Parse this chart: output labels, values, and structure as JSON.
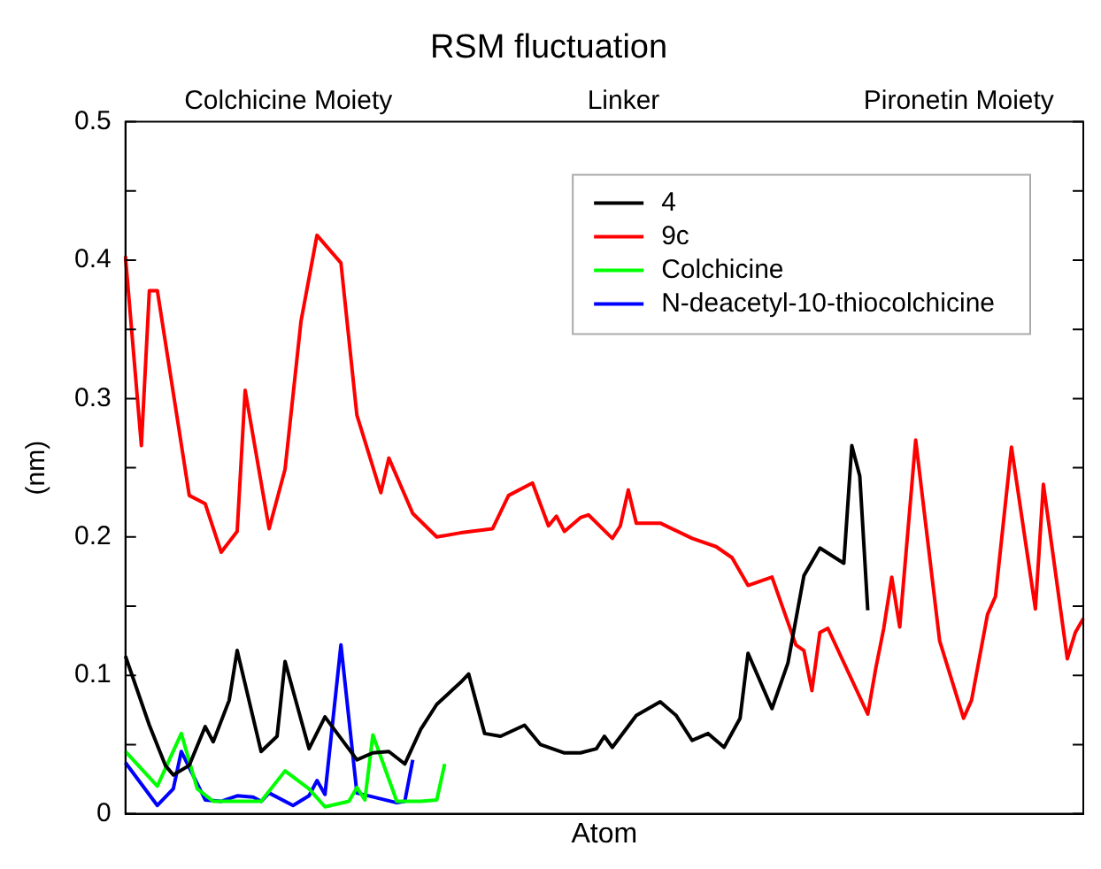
{
  "chart_data": {
    "type": "line",
    "title": "RSM fluctuation",
    "xlabel": "Atom",
    "ylabel": "(nm)",
    "annotations": [
      "Colchicine Moiety",
      "Linker",
      "Pironetin Moiety"
    ],
    "categories": [
      null,
      null,
      null,
      null,
      null,
      null,
      null,
      null,
      null,
      null,
      null,
      null,
      null,
      null,
      null,
      null,
      null,
      null,
      null,
      null,
      null,
      null,
      null,
      null,
      null,
      null,
      null,
      null,
      null,
      null,
      null,
      null,
      null,
      null,
      null,
      null,
      null,
      null,
      null,
      null,
      null,
      null,
      null,
      null,
      null,
      null,
      null,
      null,
      null,
      null,
      null,
      null,
      null,
      null,
      null,
      null,
      null,
      null,
      null,
      null,
      null,
      null,
      null,
      null,
      null,
      null,
      null,
      null,
      null,
      null,
      null,
      null,
      null,
      null,
      null,
      null,
      null,
      null,
      null,
      null,
      null,
      null,
      null,
      null,
      null,
      null,
      null,
      null,
      null,
      null,
      null,
      null,
      null,
      null,
      null,
      null,
      null,
      null,
      null,
      null,
      null,
      null,
      null,
      null,
      null,
      null,
      null,
      null,
      null,
      null,
      null,
      null,
      null,
      null,
      null,
      null,
      null,
      null,
      null,
      null,
      null
    ],
    "ylim": [
      0,
      0.5
    ],
    "yticks": [
      0,
      {
        "value": 0.05,
        "label": null
      },
      0.1,
      {
        "value": 0.15,
        "label": null
      },
      0.2,
      {
        "value": 0.25,
        "label": null
      },
      0.3,
      {
        "value": 0.35,
        "label": null
      },
      0.4,
      {
        "value": 0.45,
        "label": null
      },
      0.5
    ],
    "tick_labels": "y",
    "grid": false,
    "legend": "top right",
    "marker": "none",
    "line_style": "solid",
    "series": [
      {
        "name": "4",
        "color": "#000000",
        "values": [
          0.114,
          null,
          null,
          0.064,
          null,
          0.035,
          0.028,
          null,
          0.035,
          null,
          0.063,
          0.052,
          null,
          0.082,
          0.118,
          null,
          null,
          0.045,
          null,
          0.056,
          0.11,
          null,
          null,
          0.047,
          null,
          0.07,
          null,
          null,
          null,
          0.039,
          null,
          0.044,
          null,
          0.045,
          null,
          0.036,
          null,
          0.061,
          null,
          0.079,
          null,
          null,
          0.095,
          0.101,
          null,
          0.058,
          null,
          0.056,
          null,
          null,
          0.064,
          null,
          0.05,
          null,
          null,
          0.044,
          null,
          0.044,
          null,
          0.047,
          0.056,
          0.048,
          null,
          null,
          0.071,
          null,
          null,
          0.081,
          null,
          0.071,
          null,
          0.053,
          null,
          0.058,
          null,
          0.048,
          null,
          0.069,
          0.116,
          null,
          null,
          0.076,
          null,
          0.109,
          null,
          0.172,
          null,
          0.192,
          null,
          null,
          0.181,
          0.266,
          0.244,
          0.147,
          null,
          null,
          null,
          null,
          null,
          null,
          null,
          null,
          null,
          null,
          null,
          null,
          null,
          null,
          null,
          null,
          null,
          null,
          null,
          null,
          null,
          null,
          null,
          null,
          null,
          null,
          null
        ]
      },
      {
        "name": "9c",
        "color": "#ff0000",
        "values": [
          0.403,
          null,
          0.266,
          0.378,
          0.378,
          null,
          null,
          null,
          0.23,
          null,
          0.224,
          null,
          0.189,
          null,
          0.204,
          0.306,
          null,
          null,
          0.206,
          null,
          0.249,
          null,
          0.356,
          null,
          0.418,
          null,
          null,
          0.398,
          null,
          0.288,
          null,
          null,
          0.232,
          0.257,
          null,
          null,
          0.217,
          null,
          null,
          0.2,
          null,
          null,
          0.203,
          null,
          null,
          null,
          0.206,
          null,
          0.23,
          null,
          null,
          0.239,
          null,
          0.208,
          0.215,
          0.204,
          null,
          0.214,
          0.216,
          null,
          null,
          0.199,
          0.208,
          0.234,
          0.21,
          null,
          null,
          0.21,
          null,
          null,
          null,
          0.199,
          null,
          null,
          0.193,
          null,
          0.185,
          null,
          0.165,
          null,
          null,
          0.171,
          null,
          null,
          0.122,
          0.118,
          0.089,
          0.131,
          0.134,
          null,
          null,
          null,
          null,
          0.072,
          0.105,
          0.134,
          0.171,
          0.135,
          null,
          0.27,
          null,
          null,
          0.125,
          null,
          null,
          0.069,
          0.082,
          null,
          0.144,
          0.157,
          null,
          0.265,
          null,
          null,
          0.148,
          0.238,
          null,
          null,
          0.112,
          0.131,
          0.141
        ]
      },
      {
        "name": "Colchicine",
        "color": "#00ff00",
        "values": [
          0.045,
          null,
          null,
          null,
          0.02,
          null,
          null,
          0.058,
          null,
          0.018,
          null,
          0.009,
          null,
          null,
          null,
          null,
          null,
          0.009,
          null,
          null,
          0.031,
          null,
          null,
          0.018,
          null,
          0.005,
          null,
          null,
          0.009,
          0.019,
          0.01,
          0.057,
          null,
          null,
          0.009,
          null,
          null,
          0.009,
          null,
          0.01,
          0.036,
          null,
          null,
          null,
          null,
          null,
          null,
          null,
          null,
          null,
          null,
          null,
          null,
          null,
          null,
          null,
          null,
          null,
          null,
          null,
          null,
          null,
          null,
          null,
          null,
          null,
          null,
          null,
          null,
          null,
          null,
          null,
          null,
          null,
          null,
          null,
          null,
          null,
          null,
          null,
          null,
          null,
          null,
          null,
          null,
          null,
          null,
          null,
          null,
          null,
          null,
          null,
          null,
          null,
          null,
          null,
          null,
          null,
          null,
          null,
          null,
          null,
          null,
          null,
          null,
          null,
          null,
          null,
          null,
          null,
          null,
          null,
          null,
          null,
          null,
          null,
          null,
          null,
          null,
          null,
          null
        ]
      },
      {
        "name": "N-deacetyl-10-thiocolchicine",
        "color": "#0000ff",
        "values": [
          0.037,
          null,
          null,
          null,
          0.006,
          null,
          0.018,
          0.045,
          null,
          null,
          0.01,
          null,
          0.009,
          null,
          0.013,
          null,
          0.012,
          0.009,
          0.015,
          null,
          null,
          0.006,
          null,
          0.013,
          0.024,
          0.014,
          null,
          0.122,
          null,
          0.015,
          null,
          null,
          null,
          null,
          0.008,
          0.009,
          0.039,
          null,
          null,
          null,
          null,
          null,
          null,
          null,
          null,
          null,
          null,
          null,
          null,
          null,
          null,
          null,
          null,
          null,
          null,
          null,
          null,
          null,
          null,
          null,
          null,
          null,
          null,
          null,
          null,
          null,
          null,
          null,
          null,
          null,
          null,
          null,
          null,
          null,
          null,
          null,
          null,
          null,
          null,
          null,
          null,
          null,
          null,
          null,
          null,
          null,
          null,
          null,
          null,
          null,
          null,
          null,
          null,
          null,
          null,
          null,
          null,
          null,
          null,
          null,
          null,
          null,
          null,
          null,
          null,
          null,
          null,
          null,
          null,
          null,
          null,
          null,
          null,
          null,
          null,
          null,
          null,
          null,
          null,
          null,
          null
        ]
      }
    ]
  }
}
